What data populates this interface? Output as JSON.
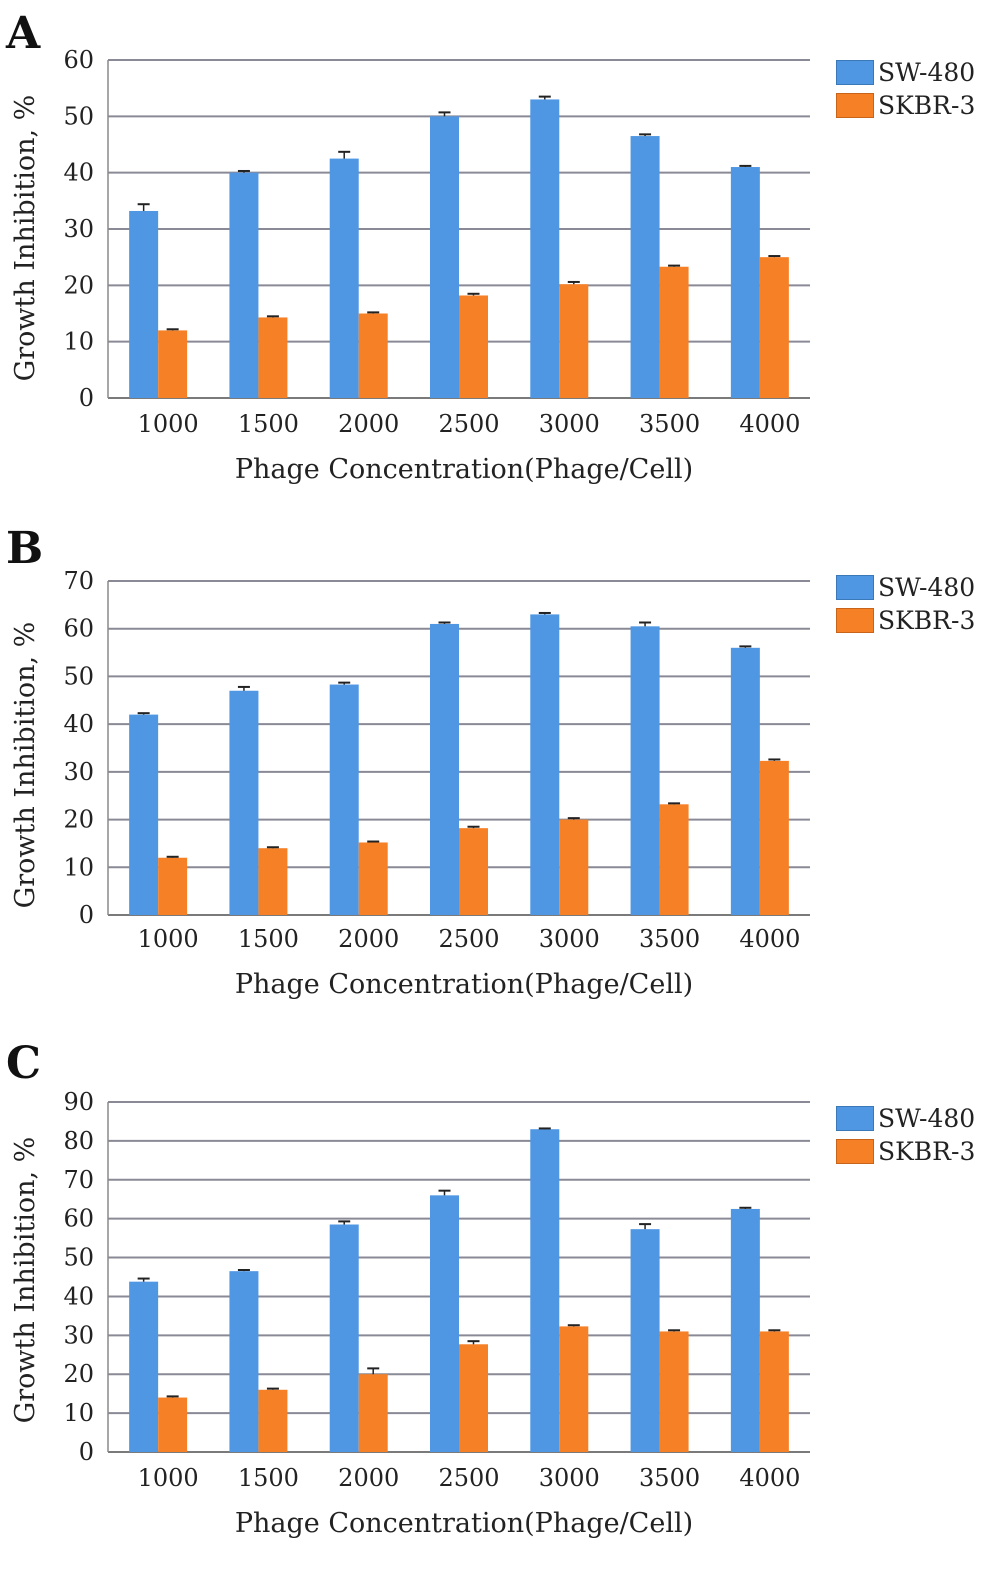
{
  "chart_data": [
    {
      "panel_label": "A",
      "type": "bar",
      "categories": [
        "1000",
        "1500",
        "2000",
        "2500",
        "3000",
        "3500",
        "4000"
      ],
      "series": [
        {
          "name": "SW-480",
          "color": "#4f97e3",
          "values": [
            33.2,
            40.0,
            42.5,
            50.0,
            53.0,
            46.5,
            41.0
          ],
          "errors": [
            1.2,
            0.3,
            1.2,
            0.7,
            0.5,
            0.3,
            0.2
          ]
        },
        {
          "name": "SKBR-3",
          "color": "#f68026",
          "values": [
            12.0,
            14.3,
            15.0,
            18.2,
            20.2,
            23.3,
            25.0
          ],
          "errors": [
            0.2,
            0.2,
            0.2,
            0.3,
            0.4,
            0.2,
            0.2
          ]
        }
      ],
      "xlabel": "Phage Concentration(Phage/Cell)",
      "ylabel": "Growth Inhibition, %",
      "ylim": [
        0,
        60
      ],
      "yticks": [
        "0",
        "10",
        "20",
        "30",
        "40",
        "50",
        "60"
      ],
      "grid": true,
      "legend_position": "right"
    },
    {
      "panel_label": "B",
      "type": "bar",
      "categories": [
        "1000",
        "1500",
        "2000",
        "2500",
        "3000",
        "3500",
        "4000"
      ],
      "series": [
        {
          "name": "SW-480",
          "color": "#4f97e3",
          "values": [
            42.0,
            47.0,
            48.3,
            61.0,
            63.0,
            60.5,
            56.0
          ],
          "errors": [
            0.3,
            0.8,
            0.4,
            0.3,
            0.3,
            0.8,
            0.3
          ]
        },
        {
          "name": "SKBR-3",
          "color": "#f68026",
          "values": [
            12.0,
            14.0,
            15.2,
            18.2,
            20.0,
            23.2,
            32.3
          ],
          "errors": [
            0.2,
            0.2,
            0.2,
            0.3,
            0.3,
            0.2,
            0.3
          ]
        }
      ],
      "xlabel": "Phage Concentration(Phage/Cell)",
      "ylabel": "Growth Inhibition, %",
      "ylim": [
        0,
        70
      ],
      "yticks": [
        "0",
        "10",
        "20",
        "30",
        "40",
        "50",
        "60",
        "70"
      ],
      "grid": true,
      "legend_position": "right"
    },
    {
      "panel_label": "C",
      "type": "bar",
      "categories": [
        "1000",
        "1500",
        "2000",
        "2500",
        "3000",
        "3500",
        "4000"
      ],
      "series": [
        {
          "name": "SW-480",
          "color": "#4f97e3",
          "values": [
            43.8,
            46.5,
            58.5,
            66.0,
            83.0,
            57.3,
            62.5
          ],
          "errors": [
            0.8,
            0.3,
            0.8,
            1.2,
            0.2,
            1.3,
            0.3
          ]
        },
        {
          "name": "SKBR-3",
          "color": "#f68026",
          "values": [
            14.0,
            16.0,
            20.0,
            27.7,
            32.3,
            31.0,
            31.0
          ],
          "errors": [
            0.3,
            0.3,
            1.5,
            0.8,
            0.3,
            0.3,
            0.3
          ]
        }
      ],
      "xlabel": "Phage Concentration(Phage/Cell)",
      "ylabel": "Growth Inhibition, %",
      "ylim": [
        0,
        90
      ],
      "yticks": [
        "0",
        "10",
        "20",
        "30",
        "40",
        "50",
        "60",
        "70",
        "80",
        "90"
      ],
      "grid": true,
      "legend_position": "right"
    }
  ]
}
